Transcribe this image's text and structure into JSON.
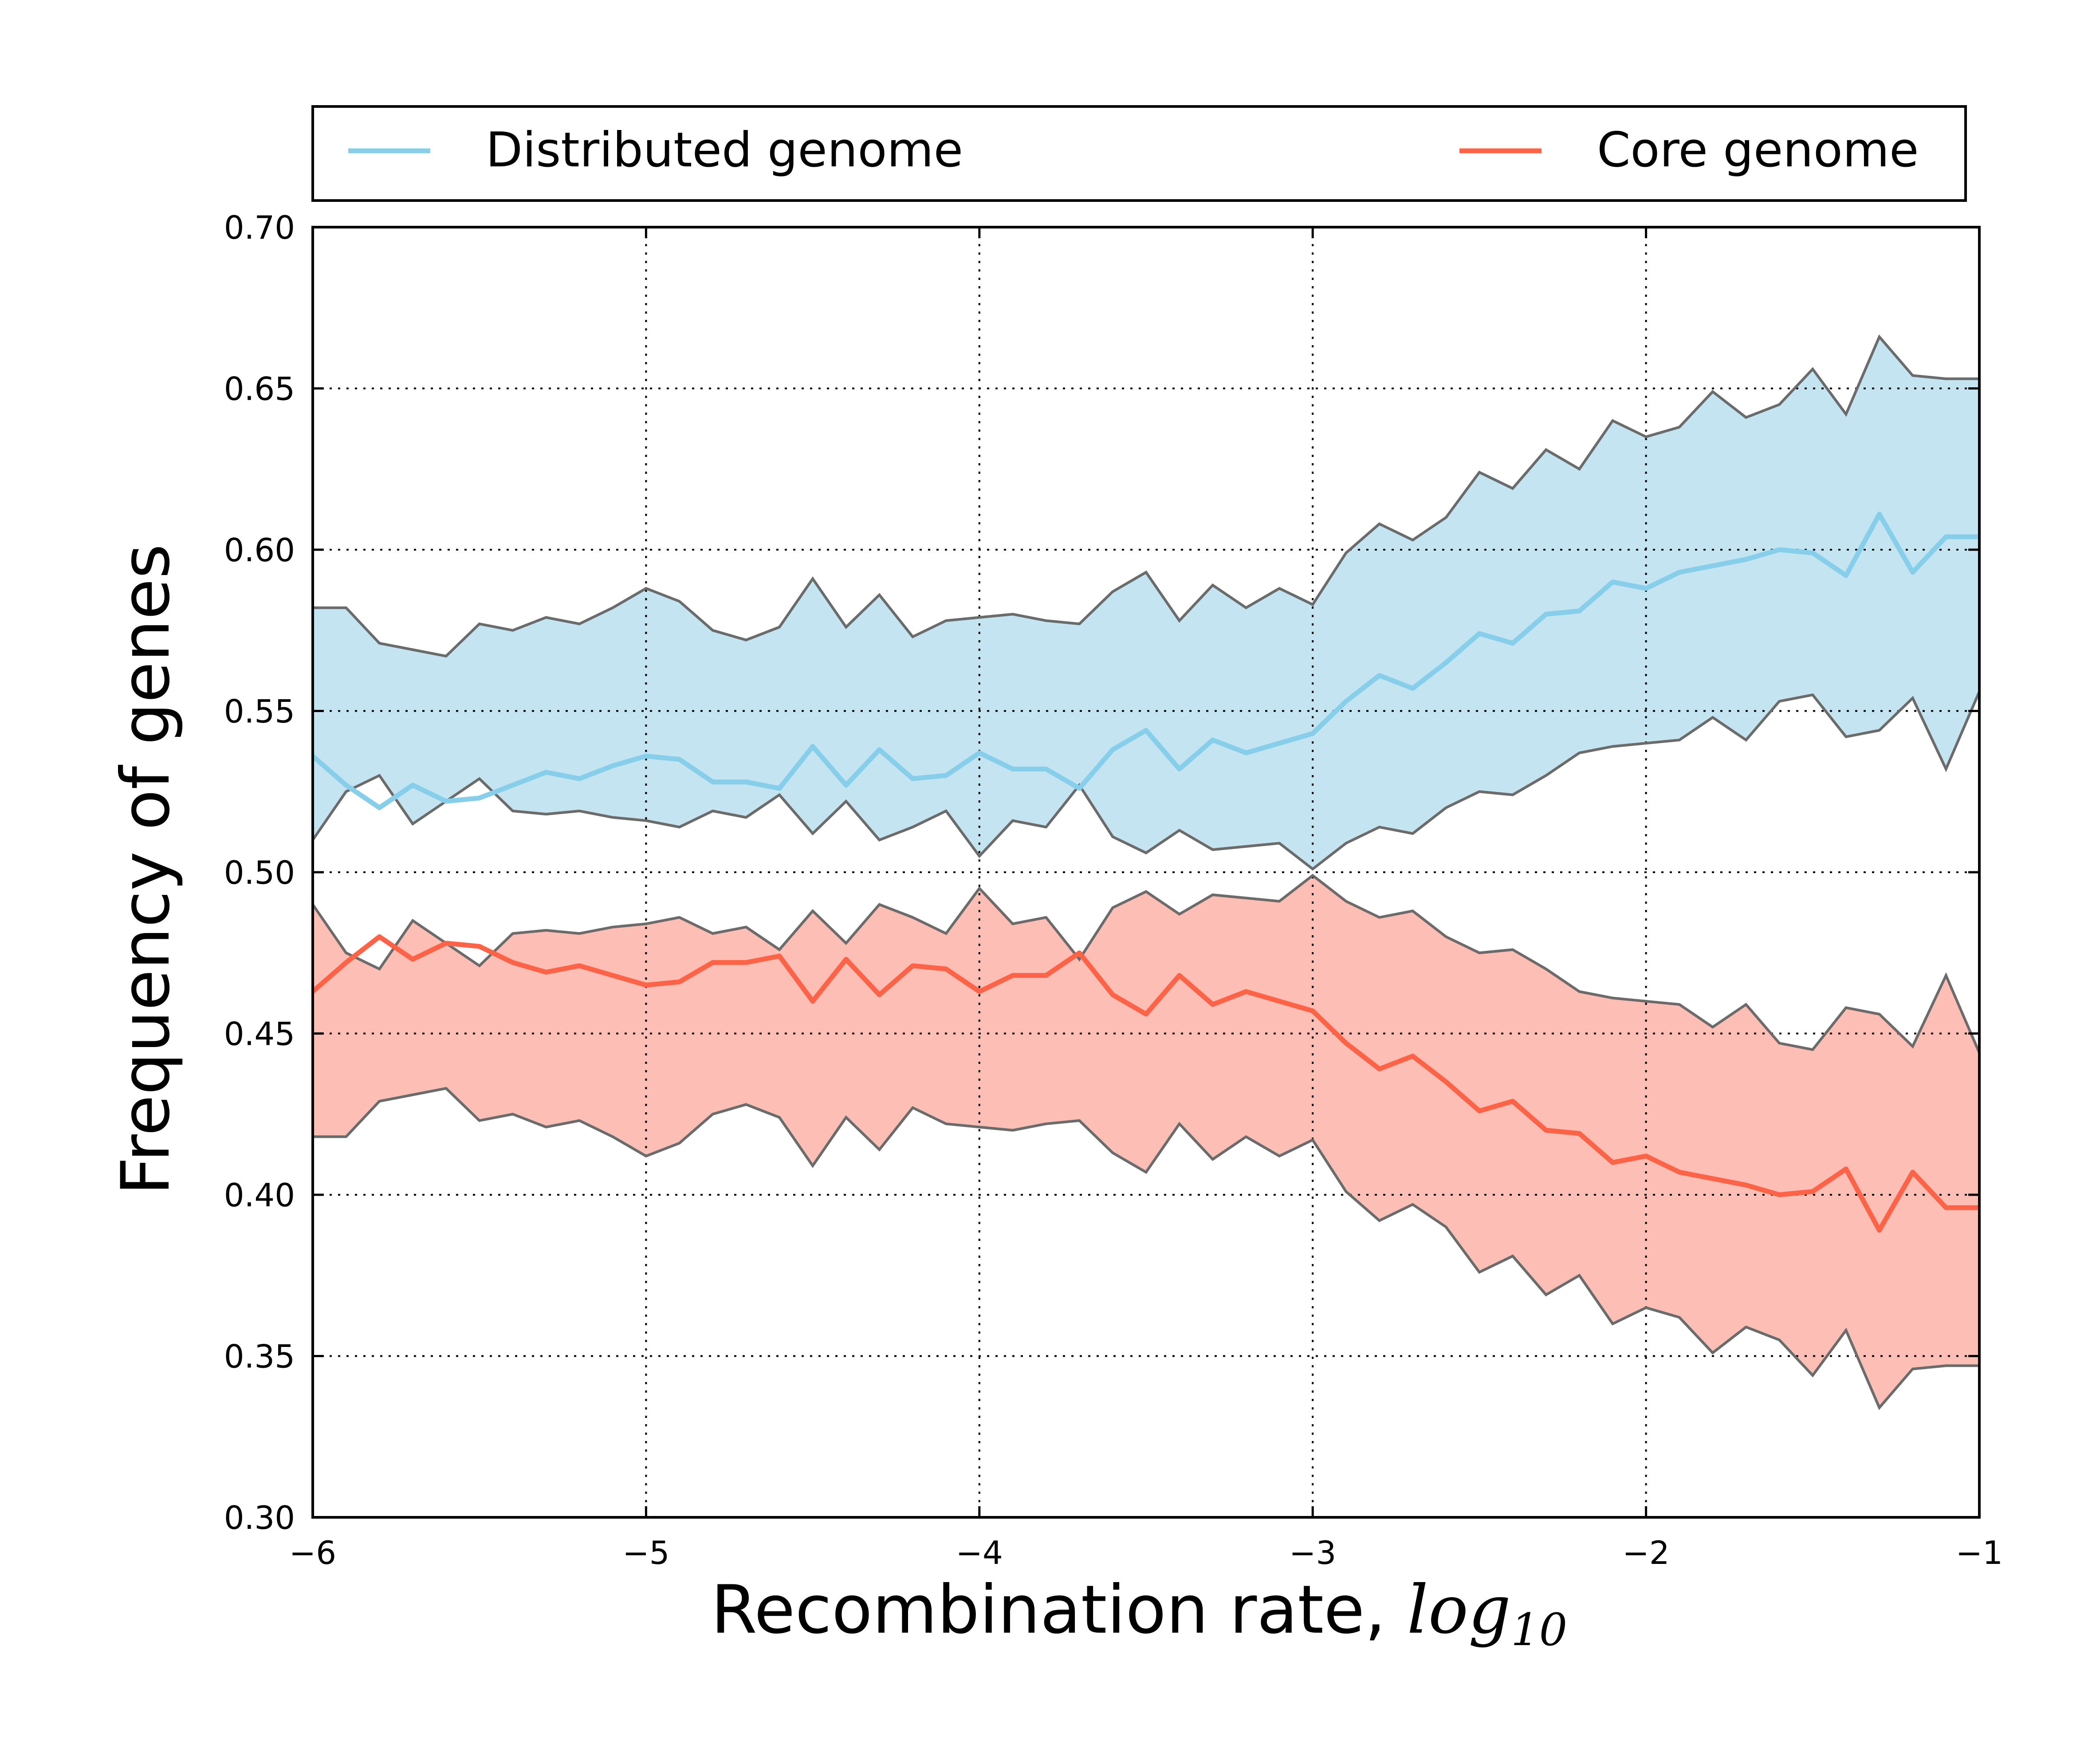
{
  "chart_data": {
    "type": "line",
    "xlabel": "Recombination rate, ",
    "xlabel_math": "log",
    "xlabel_math_sub": "10",
    "ylabel": "Frequency of genes",
    "xlim": [
      -6,
      -1
    ],
    "ylim": [
      0.3,
      0.7
    ],
    "x_ticks": [
      -6,
      -5,
      -4,
      -3,
      -2,
      -1
    ],
    "x_tick_labels": [
      "−6",
      "−5",
      "−4",
      "−3",
      "−2",
      "−1"
    ],
    "y_ticks": [
      0.3,
      0.35,
      0.4,
      0.45,
      0.5,
      0.55,
      0.6,
      0.65,
      0.7
    ],
    "y_tick_labels": [
      "0.30",
      "0.35",
      "0.40",
      "0.45",
      "0.50",
      "0.55",
      "0.60",
      "0.65",
      "0.70"
    ],
    "grid": true,
    "legend_position": "top, above plot",
    "x": [
      -6.0,
      -5.9,
      -5.8,
      -5.7,
      -5.6,
      -5.5,
      -5.4,
      -5.3,
      -5.2,
      -5.1,
      -5.0,
      -4.9,
      -4.8,
      -4.7,
      -4.6,
      -4.5,
      -4.4,
      -4.3,
      -4.2,
      -4.1,
      -4.0,
      -3.9,
      -3.8,
      -3.7,
      -3.6,
      -3.5,
      -3.4,
      -3.3,
      -3.2,
      -3.1,
      -3.0,
      -2.9,
      -2.8,
      -2.7,
      -2.6,
      -2.5,
      -2.4,
      -2.3,
      -2.2,
      -2.1,
      -2.0,
      -1.9,
      -1.8,
      -1.7,
      -1.6,
      -1.5,
      -1.4,
      -1.3,
      -1.2,
      -1.1,
      -1.0
    ],
    "series": [
      {
        "name": "Distributed genome",
        "color": "#87ceeb",
        "fill_color": "#c4e4f1",
        "values": [
          0.536,
          0.527,
          0.52,
          0.527,
          0.522,
          0.523,
          0.527,
          0.531,
          0.529,
          0.533,
          0.536,
          0.535,
          0.528,
          0.528,
          0.526,
          0.539,
          0.527,
          0.538,
          0.529,
          0.53,
          0.537,
          0.532,
          0.532,
          0.526,
          0.538,
          0.544,
          0.532,
          0.541,
          0.537,
          0.54,
          0.543,
          0.553,
          0.561,
          0.557,
          0.565,
          0.574,
          0.571,
          0.58,
          0.581,
          0.59,
          0.588,
          0.593,
          0.595,
          0.597,
          0.6,
          0.599,
          0.592,
          0.611,
          0.593,
          0.604,
          0.604
        ],
        "upper": [
          0.582,
          0.582,
          0.571,
          0.569,
          0.567,
          0.577,
          0.575,
          0.579,
          0.577,
          0.582,
          0.588,
          0.584,
          0.575,
          0.572,
          0.576,
          0.591,
          0.576,
          0.586,
          0.573,
          0.578,
          0.579,
          0.58,
          0.578,
          0.577,
          0.587,
          0.593,
          0.578,
          0.589,
          0.582,
          0.588,
          0.583,
          0.599,
          0.608,
          0.603,
          0.61,
          0.624,
          0.619,
          0.631,
          0.625,
          0.64,
          0.635,
          0.638,
          0.649,
          0.641,
          0.645,
          0.656,
          0.642,
          0.666,
          0.654,
          0.653,
          0.653
        ],
        "lower": [
          0.51,
          0.525,
          0.53,
          0.515,
          0.522,
          0.529,
          0.519,
          0.518,
          0.519,
          0.517,
          0.516,
          0.514,
          0.519,
          0.517,
          0.524,
          0.512,
          0.522,
          0.51,
          0.514,
          0.519,
          0.505,
          0.516,
          0.514,
          0.527,
          0.511,
          0.506,
          0.513,
          0.507,
          0.508,
          0.509,
          0.501,
          0.509,
          0.514,
          0.512,
          0.52,
          0.525,
          0.524,
          0.53,
          0.537,
          0.539,
          0.54,
          0.541,
          0.548,
          0.541,
          0.553,
          0.555,
          0.542,
          0.544,
          0.554,
          0.532,
          0.556
        ]
      },
      {
        "name": "Core genome",
        "color": "#ff6347",
        "fill_color": "#fcaa9c",
        "values": [
          0.463,
          0.472,
          0.48,
          0.473,
          0.478,
          0.477,
          0.472,
          0.469,
          0.471,
          0.468,
          0.465,
          0.466,
          0.472,
          0.472,
          0.474,
          0.46,
          0.473,
          0.462,
          0.471,
          0.47,
          0.463,
          0.468,
          0.468,
          0.475,
          0.462,
          0.456,
          0.468,
          0.459,
          0.463,
          0.46,
          0.457,
          0.447,
          0.439,
          0.443,
          0.435,
          0.426,
          0.429,
          0.42,
          0.419,
          0.41,
          0.412,
          0.407,
          0.405,
          0.403,
          0.4,
          0.401,
          0.408,
          0.389,
          0.407,
          0.396,
          0.396
        ],
        "upper": [
          0.49,
          0.475,
          0.47,
          0.485,
          0.478,
          0.471,
          0.481,
          0.482,
          0.481,
          0.483,
          0.484,
          0.486,
          0.481,
          0.483,
          0.476,
          0.488,
          0.478,
          0.49,
          0.486,
          0.481,
          0.495,
          0.484,
          0.486,
          0.473,
          0.489,
          0.494,
          0.487,
          0.493,
          0.492,
          0.491,
          0.499,
          0.491,
          0.486,
          0.488,
          0.48,
          0.475,
          0.476,
          0.47,
          0.463,
          0.461,
          0.46,
          0.459,
          0.452,
          0.459,
          0.447,
          0.445,
          0.458,
          0.456,
          0.446,
          0.468,
          0.444
        ],
        "lower": [
          0.418,
          0.418,
          0.429,
          0.431,
          0.433,
          0.423,
          0.425,
          0.421,
          0.423,
          0.418,
          0.412,
          0.416,
          0.425,
          0.428,
          0.424,
          0.409,
          0.424,
          0.414,
          0.427,
          0.422,
          0.421,
          0.42,
          0.422,
          0.423,
          0.413,
          0.407,
          0.422,
          0.411,
          0.418,
          0.412,
          0.417,
          0.401,
          0.392,
          0.397,
          0.39,
          0.376,
          0.381,
          0.369,
          0.375,
          0.36,
          0.365,
          0.362,
          0.351,
          0.359,
          0.355,
          0.344,
          0.358,
          0.334,
          0.346,
          0.347,
          0.347
        ]
      }
    ]
  }
}
